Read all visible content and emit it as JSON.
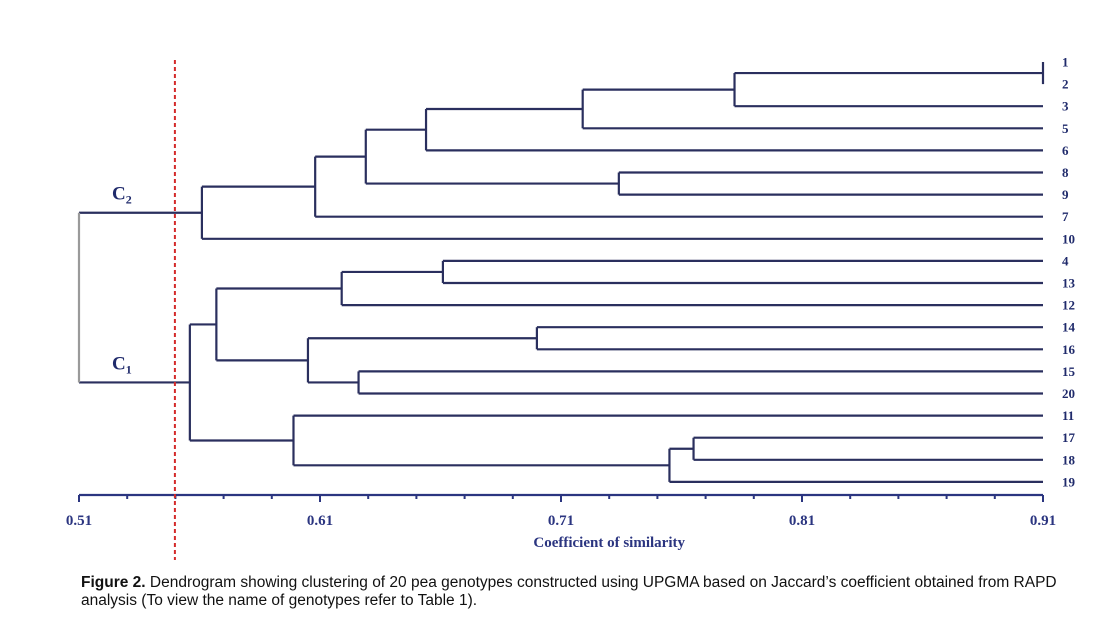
{
  "chart_data": {
    "type": "dendrogram",
    "method": "UPGMA",
    "xlabel": "Coefficient of similarity",
    "xlim": [
      0.51,
      0.91
    ],
    "x_ticks": [
      "0.51",
      "0.61",
      "0.71",
      "0.81",
      "0.91"
    ],
    "x_tick_values": [
      0.51,
      0.61,
      0.71,
      0.81,
      0.91
    ],
    "minor_tick_step": 0.02,
    "cutoff_line": {
      "value": 0.55,
      "color": "#d42a2a",
      "style": "dashed"
    },
    "leaves": [
      "1",
      "2",
      "3",
      "5",
      "6",
      "8",
      "9",
      "7",
      "10",
      "4",
      "13",
      "12",
      "14",
      "16",
      "15",
      "20",
      "11",
      "17",
      "18",
      "19"
    ],
    "merges": [
      {
        "id": "n12",
        "children": [
          "1",
          "2"
        ],
        "similarity": 0.91
      },
      {
        "id": "n123",
        "children": [
          "n12",
          "3"
        ],
        "similarity": 0.782
      },
      {
        "id": "n1235",
        "children": [
          "n123",
          "5"
        ],
        "similarity": 0.719
      },
      {
        "id": "n12356",
        "children": [
          "n1235",
          "6"
        ],
        "similarity": 0.654
      },
      {
        "id": "n89",
        "children": [
          "8",
          "9"
        ],
        "similarity": 0.734
      },
      {
        "id": "nA",
        "children": [
          "n12356",
          "n89"
        ],
        "similarity": 0.629
      },
      {
        "id": "nB",
        "children": [
          "nA",
          "7"
        ],
        "similarity": 0.608
      },
      {
        "id": "C2",
        "children": [
          "nB",
          "10"
        ],
        "similarity": 0.561
      },
      {
        "id": "n413",
        "children": [
          "4",
          "13"
        ],
        "similarity": 0.661
      },
      {
        "id": "n41312",
        "children": [
          "n413",
          "12"
        ],
        "similarity": 0.619
      },
      {
        "id": "n1416",
        "children": [
          "14",
          "16"
        ],
        "similarity": 0.7
      },
      {
        "id": "n1520",
        "children": [
          "15",
          "20"
        ],
        "similarity": 0.626
      },
      {
        "id": "nC",
        "children": [
          "n1416",
          "n1520"
        ],
        "similarity": 0.605
      },
      {
        "id": "nD",
        "children": [
          "n41312",
          "nC"
        ],
        "similarity": 0.567
      },
      {
        "id": "n1718",
        "children": [
          "17",
          "18"
        ],
        "similarity": 0.765
      },
      {
        "id": "n171819",
        "children": [
          "n1718",
          "19"
        ],
        "similarity": 0.755
      },
      {
        "id": "nE",
        "children": [
          "11",
          "n171819"
        ],
        "similarity": 0.599
      },
      {
        "id": "C1",
        "children": [
          "nD",
          "nE"
        ],
        "similarity": 0.556
      },
      {
        "id": "root",
        "children": [
          "C2",
          "C1"
        ],
        "similarity": 0.51
      }
    ],
    "clusters": [
      {
        "node": "C2",
        "label": "C",
        "sub": "2"
      },
      {
        "node": "C1",
        "label": "C",
        "sub": "1"
      }
    ],
    "colors": {
      "line": "#2a2f5e",
      "root_link": "#9a9a9a",
      "text": "#1f2a6b",
      "axis": "#2b3580"
    }
  },
  "caption": {
    "bold": "Figure 2.",
    "text": " Dendrogram showing clustering of 20 pea genotypes constructed using UPGMA based on Jaccard’s coefficient obtained from RAPD analysis (To view the name of genotypes refer to Table 1)."
  }
}
